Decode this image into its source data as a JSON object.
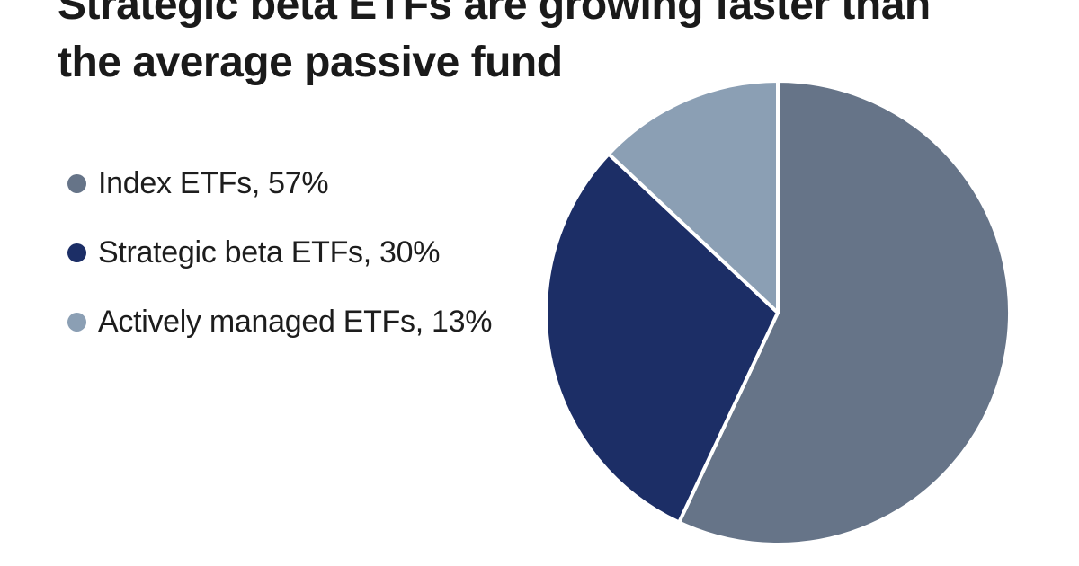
{
  "chart": {
    "title": "Strategic beta ETFs are growing faster than the average passive fund",
    "title_lines": [
      "Strategic beta ETFs are growing faster than",
      "the average passive fund"
    ],
    "text_color": "#1a1a1a",
    "background_color": "#ffffff"
  },
  "legend": {
    "items": [
      {
        "label": "Index ETFs, 57%"
      },
      {
        "label": "Strategic beta ETFs, 30%"
      },
      {
        "label": "Actively managed ETFs, 13%"
      }
    ]
  },
  "chart_data": {
    "type": "pie",
    "title": "Strategic beta ETFs are growing faster than the average passive fund",
    "categories": [
      "Index ETFs",
      "Strategic beta ETFs",
      "Actively managed ETFs"
    ],
    "values": [
      57,
      30,
      13
    ],
    "unit": "%",
    "colors": [
      "#667488",
      "#1c2e66",
      "#8b9fb4"
    ],
    "slice_border_color": "#ffffff",
    "start_angle": "12 o'clock",
    "direction": "clockwise",
    "legend_position": "left",
    "grid": false
  }
}
